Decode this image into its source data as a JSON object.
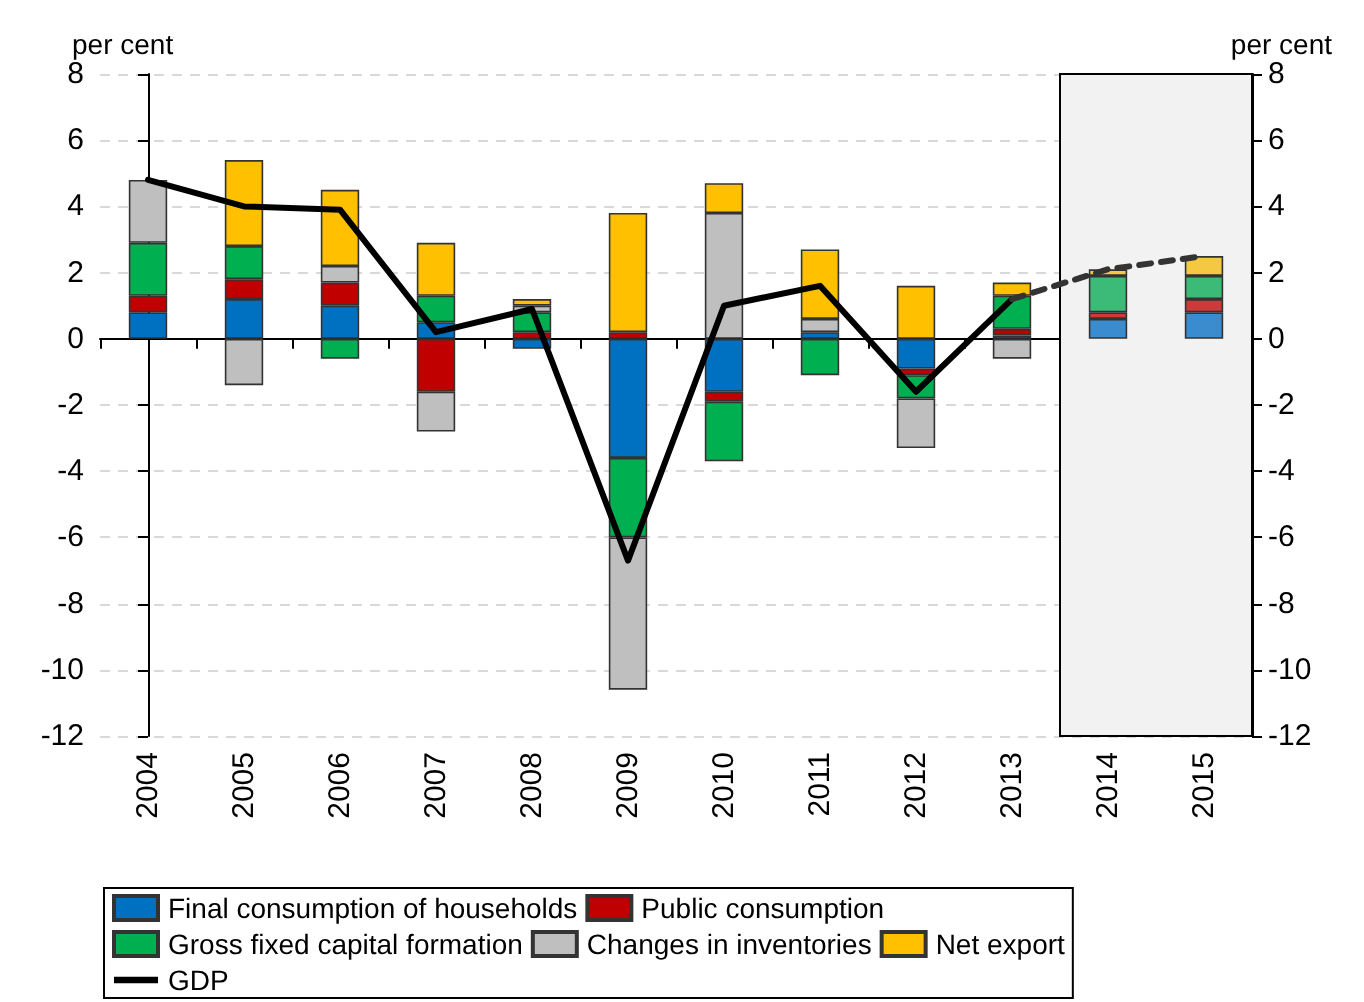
{
  "chart_data": {
    "type": "bar",
    "stacked": true,
    "ylabel": "per cent",
    "y2label": "per cent",
    "categories": [
      "2004",
      "2005",
      "2006",
      "2007",
      "2008",
      "2009",
      "2010",
      "2011",
      "2012",
      "2013",
      "2014",
      "2015"
    ],
    "series": [
      {
        "name": "Final consumption of households",
        "color": "#0070c0",
        "colors": [
          "#0070c0",
          "#0070c0",
          "#0070c0",
          "#0070c0",
          "#0070c0",
          "#0070c0",
          "#0070c0",
          "#0070c0",
          "#0070c0",
          "#0070c0",
          "#3a8ccf",
          "#3a8ccf"
        ],
        "values": [
          0.8,
          1.2,
          1.0,
          0.5,
          -0.3,
          -3.6,
          -1.6,
          0.2,
          -0.9,
          0.1,
          0.6,
          0.8
        ]
      },
      {
        "name": "Public consumption",
        "color": "#c00000",
        "colors": [
          "#c00000",
          "#c00000",
          "#c00000",
          "#c00000",
          "#c00000",
          "#c00000",
          "#c00000",
          null,
          "#c00000",
          "#c00000",
          "#cc3a3a",
          "#cc3a3a"
        ],
        "values": [
          0.5,
          0.6,
          0.7,
          -1.6,
          0.2,
          0.2,
          -0.3,
          null,
          -0.2,
          0.2,
          0.2,
          0.4
        ]
      },
      {
        "name": "Gross fixed capital formation",
        "color": "#00b050",
        "colors": [
          "#00b050",
          "#00b050",
          "#00b050",
          "#00b050",
          "#00b050",
          "#00b050",
          "#00b050",
          "#00b050",
          "#00b050",
          "#00b050",
          "#3cbb78",
          "#3cbb78"
        ],
        "values": [
          1.6,
          1.0,
          -0.6,
          0.8,
          0.6,
          -2.4,
          -1.8,
          -1.1,
          -0.7,
          1.0,
          1.1,
          0.7
        ]
      },
      {
        "name": "Changes in inventories",
        "color": "#bfbfbf",
        "colors": [
          "#bfbfbf",
          "#bfbfbf",
          "#bfbfbf",
          "#bfbfbf",
          "#bfbfbf",
          "#bfbfbf",
          "#bfbfbf",
          "#bfbfbf",
          "#bfbfbf",
          "#bfbfbf",
          null,
          null
        ],
        "values": [
          1.9,
          -1.4,
          0.5,
          -1.2,
          0.2,
          -4.6,
          3.8,
          0.4,
          -1.5,
          -0.6,
          null,
          null
        ]
      },
      {
        "name": "Net export",
        "color": "#ffc000",
        "colors": [
          null,
          "#ffc000",
          "#ffc000",
          "#ffc000",
          "#ffc000",
          "#ffc000",
          "#ffc000",
          "#ffc000",
          "#ffc000",
          "#ffc000",
          "#f5c842",
          "#f5c842"
        ],
        "values": [
          null,
          2.6,
          2.3,
          1.6,
          0.2,
          3.6,
          0.9,
          2.1,
          1.6,
          0.4,
          0.2,
          0.6
        ]
      },
      {
        "name": "GDP",
        "type": "line",
        "color": "#000000",
        "line_style": "solid",
        "values": [
          4.8,
          4.0,
          3.9,
          0.2,
          0.9,
          -6.7,
          1.0,
          1.6,
          -1.6,
          1.2,
          null,
          null
        ]
      },
      {
        "type": "line",
        "color": "#333333",
        "line_style": "dashed",
        "values": [
          null,
          null,
          null,
          null,
          null,
          null,
          null,
          null,
          null,
          1.2,
          2.1,
          2.5
        ]
      }
    ],
    "ylim": [
      -12,
      8
    ],
    "yticks": [
      -12,
      -10,
      -8,
      -6,
      -4,
      -2,
      0,
      2,
      4,
      6,
      8
    ],
    "y2lim": [
      -12,
      8
    ],
    "y2ticks": [
      -12,
      -10,
      -8,
      -6,
      -4,
      -2,
      0,
      2,
      4,
      6,
      8
    ],
    "bands": [
      {
        "axis": "x",
        "from": "2014",
        "to": "2015",
        "color": "#f2f2f2"
      }
    ],
    "grid": "y",
    "legend": "bottom",
    "marker": "none"
  }
}
